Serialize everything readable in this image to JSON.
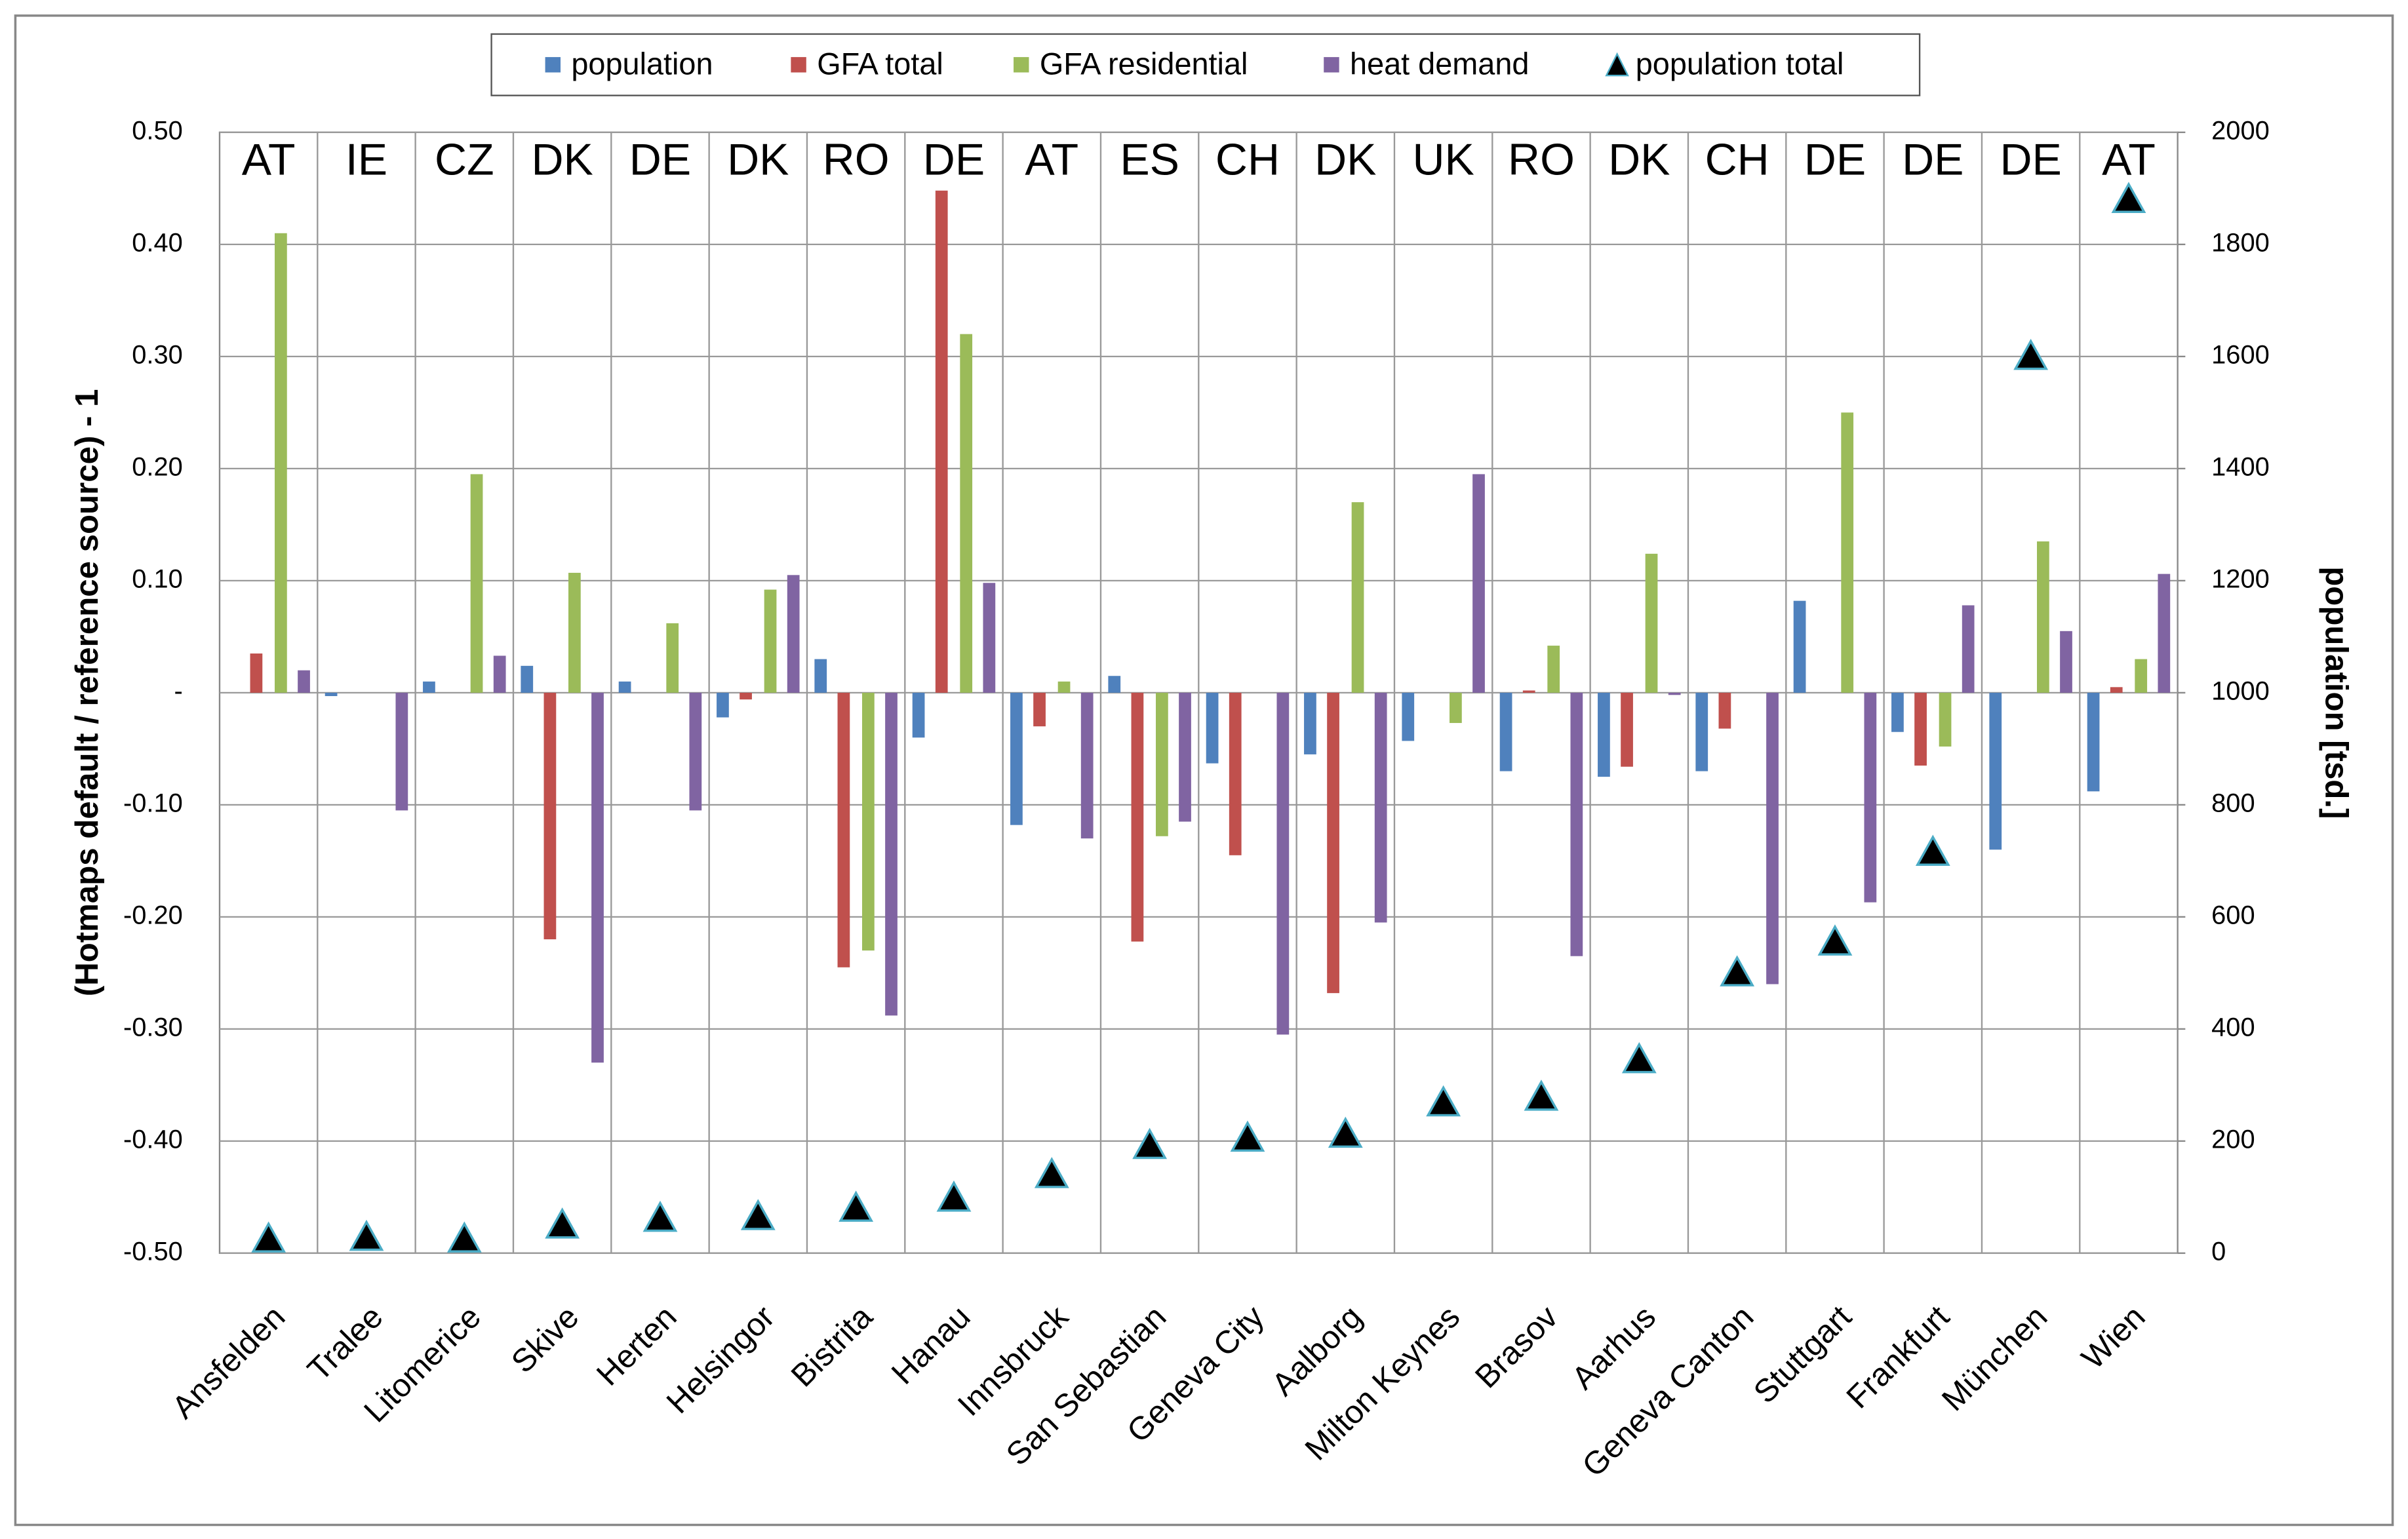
{
  "chart_data": {
    "type": "bar",
    "categories": [
      "Ansfelden",
      "Tralee",
      "Litomerice",
      "Skive",
      "Herten",
      "Helsingor",
      "Bistrita",
      "Hanau",
      "Innsbruck",
      "San Sebastian",
      "Geneva City",
      "Aalborg",
      "Milton Keynes",
      "Brasov",
      "Aarhus",
      "Geneva Canton",
      "Stuttgart",
      "Frankfurt",
      "München",
      "Wien"
    ],
    "country_codes": [
      "AT",
      "IE",
      "CZ",
      "DK",
      "DE",
      "DK",
      "RO",
      "DE",
      "AT",
      "ES",
      "CH",
      "DK",
      "UK",
      "RO",
      "DK",
      "CH",
      "DE",
      "DE",
      "DE",
      "AT"
    ],
    "y_label": "(Hotmaps default / reference source) - 1",
    "y2_label": "population [tsd.]",
    "series": [
      {
        "name": "population",
        "color": "#4f81bd",
        "values": [
          0,
          -0.003,
          0.01,
          0.024,
          0.01,
          -0.022,
          0.03,
          -0.04,
          -0.118,
          0.015,
          -0.063,
          -0.055,
          -0.043,
          -0.07,
          -0.075,
          -0.07,
          0.082,
          -0.035,
          -0.14,
          -0.088
        ]
      },
      {
        "name": "GFA total",
        "color": "#c0504d",
        "values": [
          0.035,
          0,
          0,
          -0.22,
          0,
          -0.006,
          -0.245,
          0.448,
          -0.03,
          -0.222,
          -0.145,
          -0.268,
          0,
          0.002,
          -0.066,
          -0.032,
          0,
          -0.065,
          0,
          0.005
        ]
      },
      {
        "name": "GFA residential",
        "color": "#9bbb59",
        "values": [
          0.41,
          0,
          0.195,
          0.107,
          0.062,
          0.092,
          -0.23,
          0.32,
          0.01,
          -0.128,
          0,
          0.17,
          -0.027,
          0.042,
          0.124,
          0,
          0.25,
          -0.048,
          0.135,
          0.03
        ]
      },
      {
        "name": "heat demand",
        "color": "#8064a2",
        "values": [
          0.02,
          -0.105,
          0.033,
          -0.33,
          -0.105,
          0.105,
          -0.288,
          0.098,
          -0.13,
          -0.115,
          -0.305,
          -0.205,
          0.195,
          -0.235,
          -0.002,
          -0.26,
          -0.187,
          0.078,
          0.055,
          0.106
        ]
      },
      {
        "name": "population total",
        "color": "#000000",
        "type": "scatter",
        "axis": "y2",
        "values": [
          25,
          28,
          25,
          50,
          62,
          65,
          80,
          98,
          140,
          192,
          205,
          212,
          268,
          278,
          345,
          500,
          555,
          715,
          1600,
          1880
        ]
      }
    ],
    "ylim": [
      -0.5,
      0.5
    ],
    "yticks": [
      {
        "value": -0.5,
        "label": "-0.50"
      },
      {
        "value": -0.4,
        "label": "-0.40"
      },
      {
        "value": -0.3,
        "label": "-0.30"
      },
      {
        "value": -0.2,
        "label": "-0.20"
      },
      {
        "value": -0.1,
        "label": "-0.10"
      },
      {
        "value": 0,
        "label": "-"
      },
      {
        "value": 0.1,
        "label": "0.10"
      },
      {
        "value": 0.2,
        "label": "0.20"
      },
      {
        "value": 0.3,
        "label": "0.30"
      },
      {
        "value": 0.4,
        "label": "0.40"
      },
      {
        "value": 0.5,
        "label": "0.50"
      }
    ],
    "y2lim": [
      0,
      2000
    ],
    "y2ticks": [
      0,
      200,
      400,
      600,
      800,
      1000,
      1200,
      1400,
      1600,
      1800,
      2000
    ],
    "grid": true,
    "legend": "top"
  }
}
